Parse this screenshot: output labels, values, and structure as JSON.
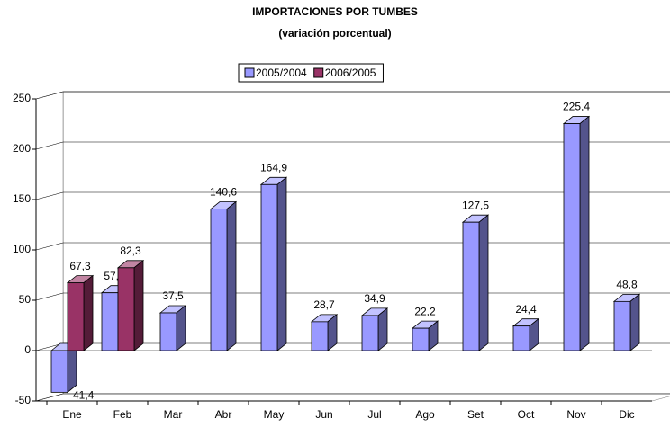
{
  "chart_data": {
    "type": "bar3d",
    "title": "IMPORTACIONES POR TUMBES",
    "subtitle": "(variación porcentual)",
    "categories": [
      "Ene",
      "Feb",
      "Mar",
      "Abr",
      "May",
      "Jun",
      "Jul",
      "Ago",
      "Set",
      "Oct",
      "Nov",
      "Dic"
    ],
    "series": [
      {
        "name": "2005/2004",
        "color": "#9999ff",
        "values": [
          -41.4,
          57.4,
          37.5,
          140.6,
          164.9,
          28.7,
          34.9,
          22.2,
          127.5,
          24.4,
          225.4,
          48.8
        ],
        "value_labels": [
          "-41,4",
          "57,4",
          "37,5",
          "140,6",
          "164,9",
          "28,7",
          "34,9",
          "22,2",
          "127,5",
          "24,4",
          "225,4",
          "48,8"
        ]
      },
      {
        "name": "2006/2005",
        "color": "#993366",
        "values": [
          67.3,
          82.3,
          null,
          null,
          null,
          null,
          null,
          null,
          null,
          null,
          null,
          null
        ],
        "value_labels": [
          "67,3",
          "82,3",
          null,
          null,
          null,
          null,
          null,
          null,
          null,
          null,
          null,
          null
        ]
      }
    ],
    "ylim": [
      -50,
      250
    ],
    "yticks": [
      -50,
      0,
      50,
      100,
      150,
      200,
      250
    ],
    "grid": true,
    "legend": "top"
  }
}
